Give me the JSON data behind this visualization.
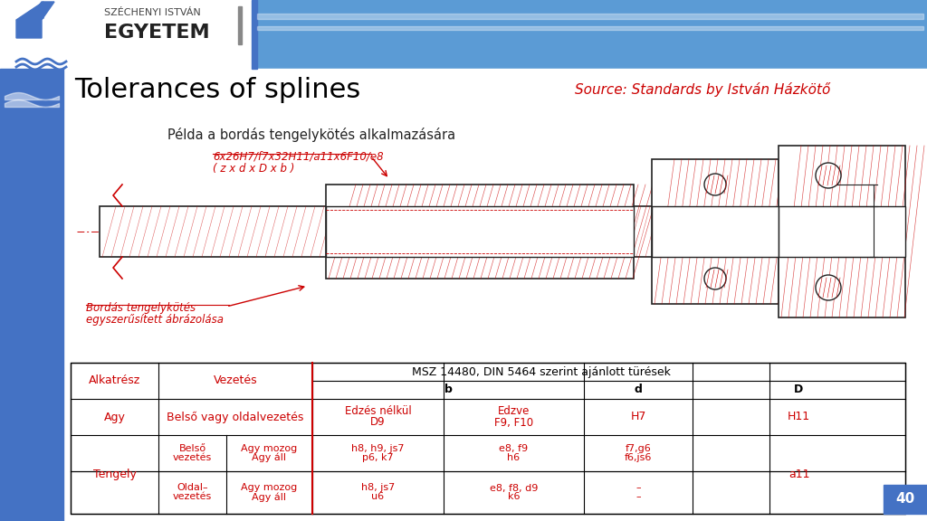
{
  "title": "Tolerances of splines",
  "source_text": "Source: Standards by István Házkötő",
  "slide_number": "40",
  "header_bg": "#5b9bd5",
  "title_color": "#000000",
  "source_color": "#cc0000",
  "body_bg": "#ffffff",
  "table_red": "#cc0000",
  "drawing_caption": "Példa a bordás tengelykötés alkalmazására",
  "drawing_label1": "6x26H7/f7x32H11/a11x6F10/e8",
  "drawing_label1b": "( z x d x D x b )",
  "drawing_label2": "Bordás tengelykötés",
  "drawing_label2b": "egyszerűsített ábrázolása",
  "table_header_row1_col1": "Alkatrész",
  "table_header_row1_col2": "Vezetés",
  "table_header_row1_col3": "MSZ 14480, DIN 5464 szerint ajánlott türések",
  "table_header_row2_b": "b",
  "table_header_row2_d": "d",
  "table_header_row2_D": "D",
  "row_agy_col1": "Agy",
  "row_agy_col2": "Belső vagy oldalvezetés",
  "row_agy_b1": "Edzés nélkül",
  "row_agy_b2": "D9",
  "row_agy_c1": "Edzve",
  "row_agy_c2": "F9, F10",
  "row_agy_d": "H7",
  "row_agy_D": "H11",
  "row_tengely_col1": "Tengely",
  "row_t1_r1c1": "Belső",
  "row_t1_r1c1b": "vezetés",
  "row_t1_r1c2": "Agy mozog",
  "row_t1_r1c2b": "Agy áll",
  "row_t1_b1": "h8, h9, js7",
  "row_t1_b2": "p6, k7",
  "row_t1_c1": "e8, f9",
  "row_t1_c2": "h6",
  "row_t1_d1": "f7,g6",
  "row_t1_d2": "f6,js6",
  "row_t1_D": "a11",
  "row_t2_r1c1": "Oldal–",
  "row_t2_r1c1b": "vezetés",
  "row_t2_r1c2": "Agy mozog",
  "row_t2_r1c2b": "Agy áll",
  "row_t2_b1": "h8, js7",
  "row_t2_b2": "u6",
  "row_t2_c1": "e8, f8, d9",
  "row_t2_c2": "k6",
  "row_t2_d1": "–",
  "row_t2_d2": "–",
  "sidebar_color": "#4472c4",
  "logo_text1": "SZÉCHENYI ISTVÁN",
  "logo_text2": "EGYETEM"
}
